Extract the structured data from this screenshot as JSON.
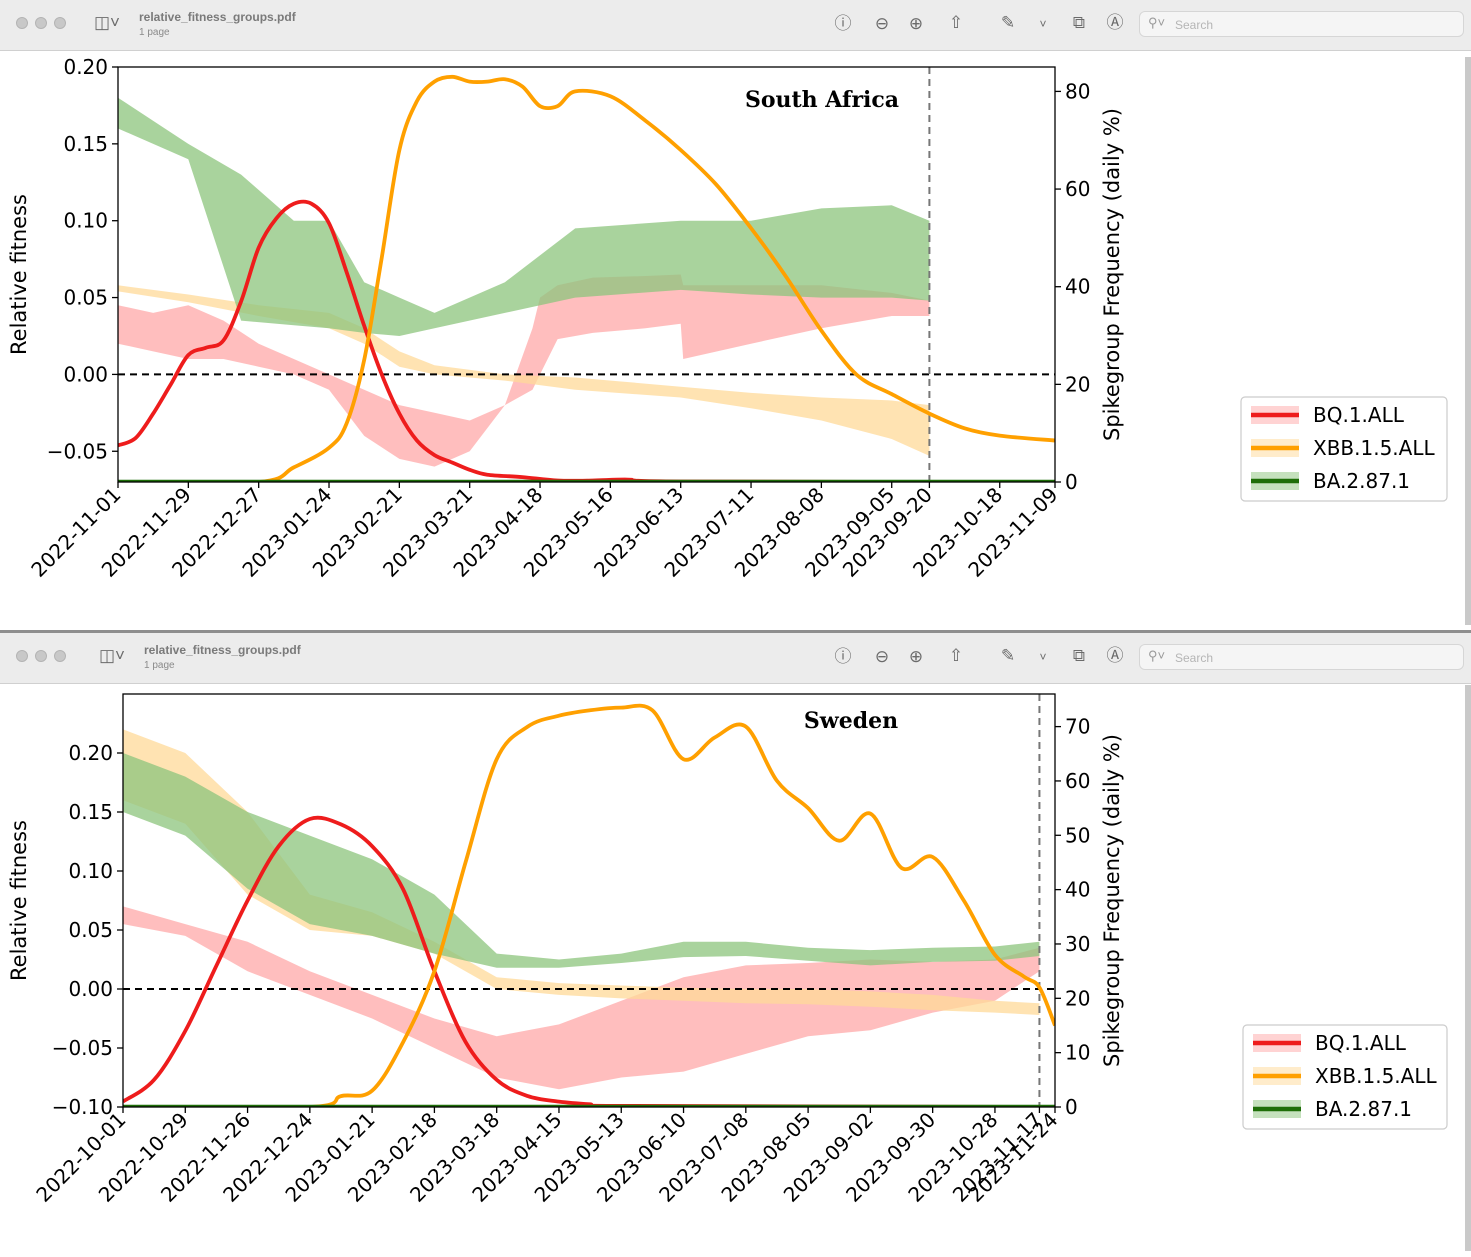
{
  "windows": [
    {
      "title": "relative_fitness_groups.pdf",
      "subtitle": "1 page",
      "search_placeholder": "Search"
    },
    {
      "title": "relative_fitness_groups.pdf",
      "subtitle": "1 page",
      "search_placeholder": "Search"
    }
  ],
  "icons": {
    "sidebar": "sidebar-icon",
    "info": "info-icon",
    "zoom_out": "zoom-out-icon",
    "zoom_in": "zoom-in-icon",
    "share": "share-icon",
    "markup": "markup-icon",
    "rotate": "rotate-icon",
    "annotate": "annotate-icon",
    "search": "search-icon"
  },
  "chart_data": [
    {
      "type": "line",
      "title": "South Africa",
      "ylabel": "Relative fitness",
      "y2label": "Spikegroup Frequency (daily %)",
      "ylim": [
        -0.07,
        0.2
      ],
      "y2lim": [
        0,
        85
      ],
      "yticks": [
        "0.20",
        "0.15",
        "0.10",
        "0.05",
        "0.00",
        "−0.05"
      ],
      "yticks_values": [
        0.2,
        0.15,
        0.1,
        0.05,
        0.0,
        -0.05
      ],
      "y2ticks": [
        "80",
        "60",
        "40",
        "20",
        "0"
      ],
      "y2ticks_values": [
        80,
        60,
        40,
        20,
        0
      ],
      "xlim": [
        "2022-11-01",
        "2023-11-09"
      ],
      "x_tick_labels": [
        "2022-11-01",
        "2022-11-29",
        "2022-12-27",
        "2023-01-24",
        "2023-02-21",
        "2023-03-21",
        "2023-04-18",
        "2023-05-16",
        "2023-06-13",
        "2023-07-11",
        "2023-08-08",
        "2023-09-05",
        "2023-09-20",
        "2023-10-18",
        "2023-11-09"
      ],
      "vline_date": "2023-09-20",
      "hline_value": 0.0,
      "grid": false,
      "legend_position": "right",
      "legend": [
        "BQ.1.ALL",
        "XBB.1.5.ALL",
        "BA.2.87.1"
      ],
      "colors": {
        "bq": "#ee1c1c",
        "xbb": "#ffa000",
        "ba": "#1e6e08",
        "bq_band": "#ffa8a8",
        "xbb_band": "#ffd998",
        "ba_band": "#8cc47c"
      },
      "frequency_series": [
        {
          "name": "BQ.1.ALL",
          "x": [
            "2022-11-01",
            "2022-11-08",
            "2022-11-15",
            "2022-11-22",
            "2022-11-29",
            "2022-12-06",
            "2022-12-13",
            "2022-12-20",
            "2022-12-27",
            "2023-01-03",
            "2023-01-10",
            "2023-01-17",
            "2023-01-24",
            "2023-01-31",
            "2023-02-07",
            "2023-02-14",
            "2023-02-21",
            "2023-02-28",
            "2023-03-07",
            "2023-03-14",
            "2023-03-21",
            "2023-03-28",
            "2023-04-11",
            "2023-04-25",
            "2023-05-09",
            "2023-05-23",
            "2023-06-13",
            "2023-11-09"
          ],
          "values": [
            7.5,
            9,
            14,
            20,
            26,
            27.5,
            29,
            37,
            48,
            54,
            57,
            57,
            53,
            43,
            32,
            22,
            14,
            8.5,
            5.5,
            4,
            2.5,
            1.5,
            1,
            0.3,
            0.3,
            0.5,
            0.1,
            0
          ]
        },
        {
          "name": "XBB.1.5.ALL",
          "x": [
            "2022-11-01",
            "2022-12-27",
            "2023-01-10",
            "2023-01-24",
            "2023-01-31",
            "2023-02-07",
            "2023-02-14",
            "2023-02-21",
            "2023-02-28",
            "2023-03-07",
            "2023-03-14",
            "2023-03-21",
            "2023-03-28",
            "2023-04-04",
            "2023-04-11",
            "2023-04-18",
            "2023-04-25",
            "2023-05-02",
            "2023-05-16",
            "2023-05-30",
            "2023-06-13",
            "2023-06-27",
            "2023-07-11",
            "2023-07-25",
            "2023-08-08",
            "2023-08-22",
            "2023-09-05",
            "2023-09-20",
            "2023-10-04",
            "2023-10-18",
            "2023-11-09"
          ],
          "values": [
            0,
            0,
            3,
            7,
            12,
            25,
            46,
            68,
            78,
            82,
            83,
            82,
            82,
            82.5,
            81,
            77,
            77,
            80,
            79,
            74,
            68,
            61,
            52,
            42,
            31,
            22,
            18,
            14,
            11,
            9.5,
            8.5
          ]
        },
        {
          "name": "BA.2.87.1",
          "x": [
            "2022-11-01",
            "2023-11-09"
          ],
          "values": [
            0,
            0
          ]
        }
      ],
      "fitness_bands": [
        {
          "name": "BQ.1.ALL",
          "x": [
            "2022-11-01",
            "2022-11-15",
            "2022-11-29",
            "2022-12-13",
            "2022-12-27",
            "2023-01-10",
            "2023-01-24",
            "2023-02-07",
            "2023-02-21",
            "2023-03-07",
            "2023-03-21",
            "2023-04-04",
            "2023-04-15",
            "2023-04-18",
            "2023-04-25",
            "2023-05-09",
            "2023-05-30",
            "2023-06-13",
            "2023-06-14",
            "2023-07-11",
            "2023-08-08",
            "2023-09-05",
            "2023-09-20"
          ],
          "upper": [
            0.045,
            0.04,
            0.045,
            0.035,
            0.02,
            0.01,
            0.0,
            -0.01,
            -0.02,
            -0.025,
            -0.03,
            -0.02,
            0.03,
            0.05,
            0.058,
            0.063,
            0.064,
            0.065,
            0.058,
            0.058,
            0.058,
            0.053,
            0.048
          ],
          "lower": [
            0.02,
            0.015,
            0.01,
            0.01,
            0.005,
            0.0,
            -0.01,
            -0.04,
            -0.055,
            -0.06,
            -0.05,
            -0.02,
            -0.01,
            0.0,
            0.023,
            0.027,
            0.03,
            0.033,
            0.01,
            0.02,
            0.03,
            0.038,
            0.038
          ]
        },
        {
          "name": "XBB.1.5.ALL",
          "x": [
            "2022-11-01",
            "2022-11-29",
            "2022-12-27",
            "2023-01-24",
            "2023-02-07",
            "2023-02-21",
            "2023-03-07",
            "2023-04-04",
            "2023-05-02",
            "2023-06-13",
            "2023-07-11",
            "2023-08-08",
            "2023-09-05",
            "2023-09-20"
          ],
          "upper": [
            0.058,
            0.052,
            0.045,
            0.04,
            0.03,
            0.015,
            0.006,
            0.0,
            -0.002,
            -0.008,
            -0.012,
            -0.015,
            -0.017,
            -0.02
          ],
          "lower": [
            0.054,
            0.047,
            0.038,
            0.03,
            0.02,
            0.005,
            0.0,
            -0.004,
            -0.01,
            -0.015,
            -0.022,
            -0.03,
            -0.042,
            -0.053
          ]
        },
        {
          "name": "BA.2.87.1",
          "x": [
            "2022-11-01",
            "2022-11-29",
            "2022-12-20",
            "2023-01-10",
            "2023-01-24",
            "2023-02-07",
            "2023-02-21",
            "2023-03-07",
            "2023-04-04",
            "2023-05-02",
            "2023-06-13",
            "2023-07-11",
            "2023-08-08",
            "2023-09-05",
            "2023-09-20"
          ],
          "upper": [
            0.18,
            0.15,
            0.13,
            0.1,
            0.1,
            0.06,
            0.05,
            0.04,
            0.06,
            0.095,
            0.1,
            0.1,
            0.108,
            0.11,
            0.1
          ],
          "lower": [
            0.16,
            0.14,
            0.035,
            0.032,
            0.03,
            0.027,
            0.025,
            0.03,
            0.04,
            0.05,
            0.055,
            0.052,
            0.05,
            0.05,
            0.048
          ]
        }
      ]
    },
    {
      "type": "line",
      "title": "Sweden",
      "ylabel": "Relative fitness",
      "y2label": "Spikegroup Frequency (daily %)",
      "ylim": [
        -0.1,
        0.25
      ],
      "y2lim": [
        0,
        76
      ],
      "yticks": [
        "0.20",
        "0.15",
        "0.10",
        "0.05",
        "0.00",
        "−0.05",
        "−0.10"
      ],
      "yticks_values": [
        0.2,
        0.15,
        0.1,
        0.05,
        0.0,
        -0.05,
        -0.1
      ],
      "y2ticks": [
        "70",
        "60",
        "50",
        "40",
        "30",
        "20",
        "10",
        "0"
      ],
      "y2ticks_values": [
        70,
        60,
        50,
        40,
        30,
        20,
        10,
        0
      ],
      "xlim": [
        "2022-10-01",
        "2023-11-24"
      ],
      "x_tick_labels": [
        "2022-10-01",
        "2022-10-29",
        "2022-11-26",
        "2022-12-24",
        "2023-01-21",
        "2023-02-18",
        "2023-03-18",
        "2023-04-15",
        "2023-05-13",
        "2023-06-10",
        "2023-07-08",
        "2023-08-05",
        "2023-09-02",
        "2023-09-30",
        "2023-10-28",
        "2023-11-17",
        "2023-11-24"
      ],
      "vline_date": "2023-11-17",
      "hline_value": 0.0,
      "grid": false,
      "legend_position": "right",
      "legend": [
        "BQ.1.ALL",
        "XBB.1.5.ALL",
        "BA.2.87.1"
      ],
      "colors": {
        "bq": "#ee1c1c",
        "xbb": "#ffa000",
        "ba": "#1e6e08",
        "bq_band": "#ffa8a8",
        "xbb_band": "#ffd998",
        "ba_band": "#8cc47c"
      },
      "frequency_series": [
        {
          "name": "BQ.1.ALL",
          "x": [
            "2022-10-01",
            "2022-10-15",
            "2022-10-29",
            "2022-11-12",
            "2022-11-26",
            "2022-12-10",
            "2022-12-24",
            "2023-01-07",
            "2023-01-21",
            "2023-02-04",
            "2023-02-18",
            "2023-03-04",
            "2023-03-18",
            "2023-04-01",
            "2023-04-15",
            "2023-04-29",
            "2023-05-13",
            "2023-11-24"
          ],
          "values": [
            1,
            5,
            14,
            26,
            38,
            48,
            53,
            52,
            48,
            40,
            25,
            12,
            5,
            2,
            1,
            0.5,
            0.2,
            0
          ]
        },
        {
          "name": "XBB.1.5.ALL",
          "x": [
            "2022-10-01",
            "2022-12-24",
            "2023-01-07",
            "2023-01-21",
            "2023-02-04",
            "2023-02-18",
            "2023-03-04",
            "2023-03-18",
            "2023-04-01",
            "2023-04-15",
            "2023-04-29",
            "2023-05-13",
            "2023-05-27",
            "2023-06-10",
            "2023-06-24",
            "2023-07-08",
            "2023-07-22",
            "2023-08-05",
            "2023-08-19",
            "2023-09-02",
            "2023-09-16",
            "2023-09-30",
            "2023-10-14",
            "2023-10-28",
            "2023-11-10",
            "2023-11-17",
            "2023-11-24"
          ],
          "values": [
            0,
            0,
            2,
            3,
            12,
            25,
            45,
            64,
            70,
            72,
            73,
            73.5,
            73,
            64,
            68,
            70,
            60,
            55,
            49,
            54,
            44,
            46,
            38,
            28,
            24,
            22,
            15
          ]
        },
        {
          "name": "BA.2.87.1",
          "x": [
            "2022-10-01",
            "2023-11-24"
          ],
          "values": [
            0,
            0
          ]
        }
      ],
      "fitness_bands": [
        {
          "name": "BQ.1.ALL",
          "x": [
            "2022-10-01",
            "2022-10-29",
            "2022-11-26",
            "2022-12-24",
            "2023-01-21",
            "2023-02-18",
            "2023-03-18",
            "2023-04-15",
            "2023-05-13",
            "2023-06-10",
            "2023-07-08",
            "2023-08-05",
            "2023-09-02",
            "2023-09-30",
            "2023-10-28",
            "2023-11-17"
          ],
          "upper": [
            0.07,
            0.055,
            0.04,
            0.015,
            -0.005,
            -0.025,
            -0.04,
            -0.03,
            -0.01,
            0.01,
            0.02,
            0.022,
            0.025,
            0.023,
            0.025,
            0.035
          ],
          "lower": [
            0.055,
            0.045,
            0.015,
            -0.005,
            -0.025,
            -0.05,
            -0.075,
            -0.085,
            -0.075,
            -0.07,
            -0.055,
            -0.04,
            -0.035,
            -0.02,
            -0.01,
            0.015
          ]
        },
        {
          "name": "XBB.1.5.ALL",
          "x": [
            "2022-10-01",
            "2022-10-29",
            "2022-11-26",
            "2022-12-24",
            "2023-01-21",
            "2023-02-18",
            "2023-03-18",
            "2023-04-15",
            "2023-05-13",
            "2023-06-10",
            "2023-07-08",
            "2023-08-05",
            "2023-09-02",
            "2023-09-30",
            "2023-10-28",
            "2023-11-17"
          ],
          "upper": [
            0.22,
            0.2,
            0.15,
            0.08,
            0.065,
            0.04,
            0.01,
            0.005,
            0.003,
            0.001,
            0.0,
            0.0,
            -0.002,
            -0.005,
            -0.01,
            -0.012
          ],
          "lower": [
            0.16,
            0.14,
            0.08,
            0.05,
            0.045,
            0.03,
            0.0,
            -0.005,
            -0.008,
            -0.01,
            -0.012,
            -0.013,
            -0.015,
            -0.018,
            -0.02,
            -0.022
          ]
        },
        {
          "name": "BA.2.87.1",
          "x": [
            "2022-10-01",
            "2022-10-29",
            "2022-11-26",
            "2022-12-24",
            "2023-01-21",
            "2023-02-18",
            "2023-03-18",
            "2023-04-15",
            "2023-05-13",
            "2023-06-10",
            "2023-07-08",
            "2023-08-05",
            "2023-09-02",
            "2023-09-30",
            "2023-10-28",
            "2023-11-17"
          ],
          "upper": [
            0.2,
            0.18,
            0.15,
            0.13,
            0.11,
            0.08,
            0.03,
            0.025,
            0.03,
            0.04,
            0.04,
            0.035,
            0.033,
            0.035,
            0.036,
            0.04
          ],
          "lower": [
            0.15,
            0.13,
            0.085,
            0.055,
            0.045,
            0.03,
            0.018,
            0.018,
            0.022,
            0.027,
            0.028,
            0.024,
            0.02,
            0.023,
            0.024,
            0.028
          ]
        }
      ]
    }
  ]
}
